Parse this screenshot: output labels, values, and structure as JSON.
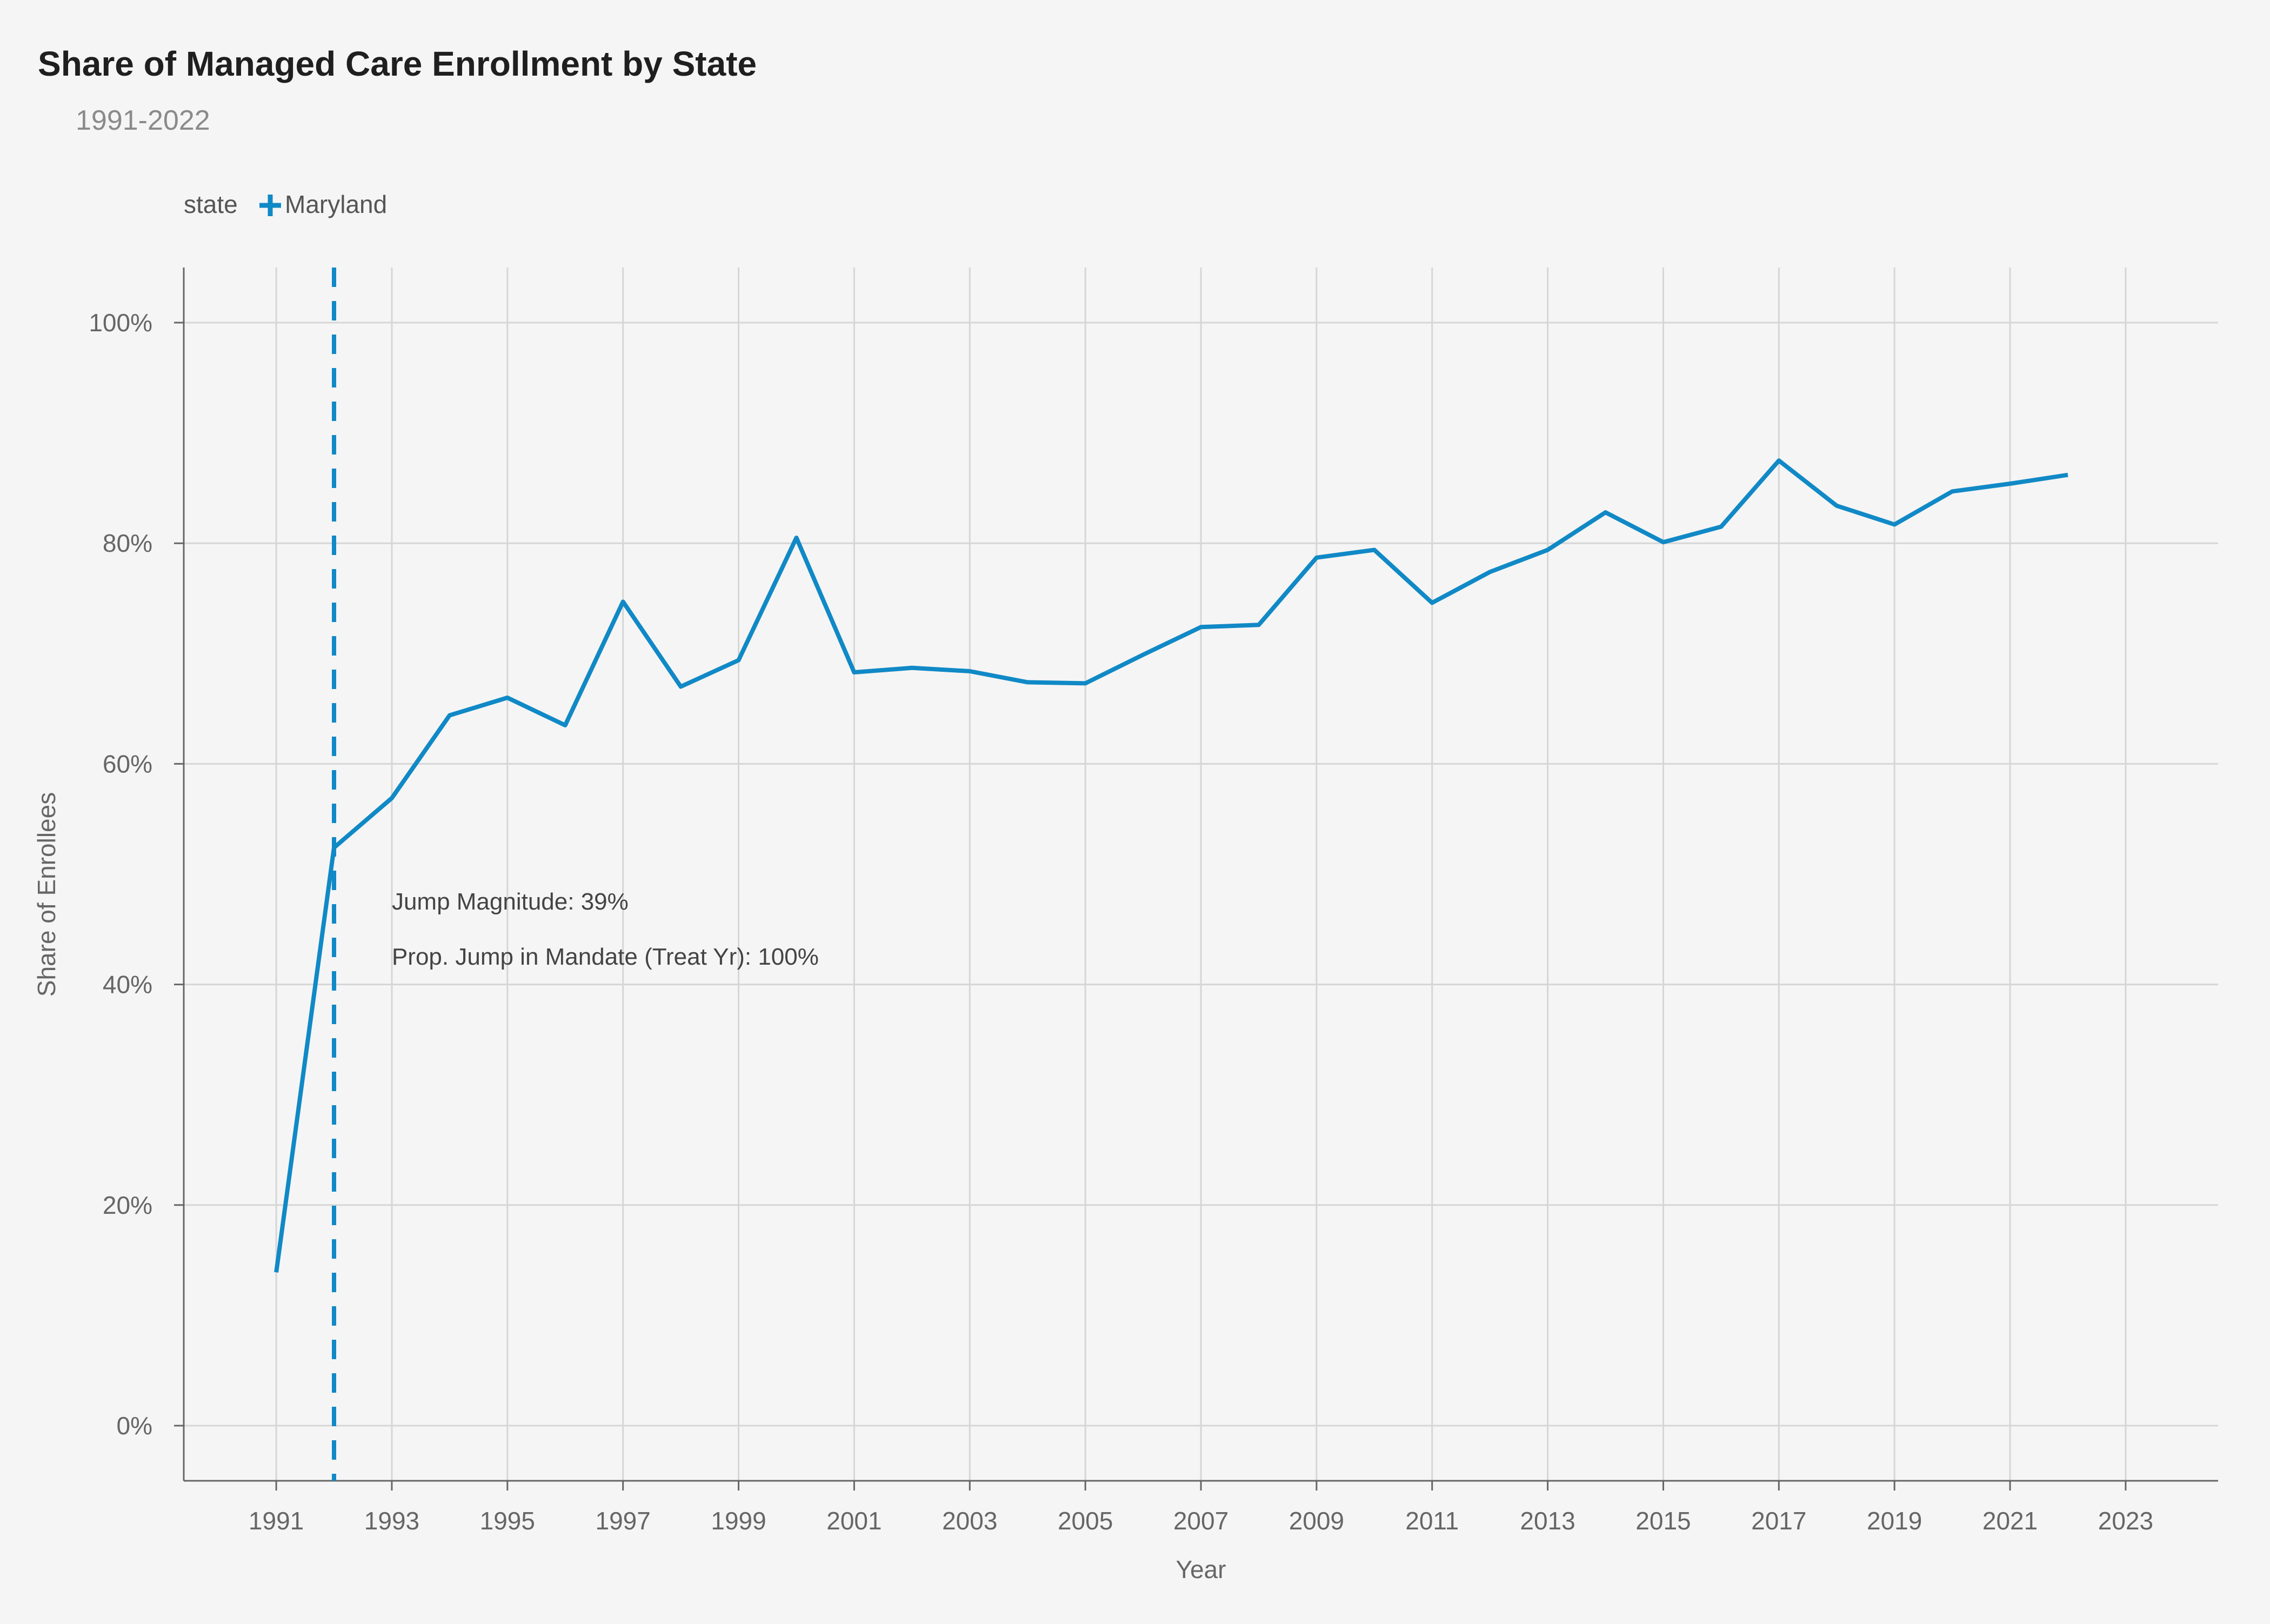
{
  "chart_data": {
    "type": "line",
    "title": "Share of Managed Care Enrollment by State",
    "subtitle": "1991-2022",
    "xlabel": "Year",
    "ylabel": "Share of Enrollees",
    "legend": {
      "title": "state",
      "placement": "top-left"
    },
    "xlim": [
      1989.4,
      2024.6
    ],
    "ylim": [
      -0.05,
      1.05
    ],
    "x_ticks": [
      1991,
      1993,
      1995,
      1997,
      1999,
      2001,
      2003,
      2005,
      2007,
      2009,
      2011,
      2013,
      2015,
      2017,
      2019,
      2021,
      2023
    ],
    "y_ticks": [
      0,
      0.2,
      0.4,
      0.6,
      0.8,
      1.0
    ],
    "y_tick_labels": [
      "0%",
      "20%",
      "40%",
      "60%",
      "80%",
      "100%"
    ],
    "grid": true,
    "series": [
      {
        "name": "Maryland",
        "color": "#1089c6",
        "x": [
          1991,
          1992,
          1993,
          1994,
          1995,
          1996,
          1997,
          1998,
          1999,
          2000,
          2001,
          2002,
          2003,
          2004,
          2005,
          2006,
          2007,
          2008,
          2009,
          2010,
          2011,
          2012,
          2013,
          2014,
          2015,
          2016,
          2017,
          2018,
          2019,
          2020,
          2021,
          2022
        ],
        "y": [
          0.139,
          0.524,
          0.569,
          0.644,
          0.66,
          0.635,
          0.747,
          0.67,
          0.694,
          0.805,
          0.683,
          0.687,
          0.684,
          0.674,
          0.673,
          0.699,
          0.724,
          0.726,
          0.787,
          0.794,
          0.746,
          0.774,
          0.794,
          0.828,
          0.801,
          0.815,
          0.875,
          0.834,
          0.817,
          0.847,
          0.854,
          0.862
        ]
      }
    ],
    "reference_line": {
      "x": 1992,
      "style": "dashed",
      "color": "#1089c6"
    },
    "annotations": [
      {
        "text": "Jump Magnitude: 39%",
        "x": 1993,
        "y": 0.468
      },
      {
        "text": "Prop. Jump in Mandate (Treat Yr): 100%",
        "x": 1993,
        "y": 0.418
      }
    ]
  }
}
